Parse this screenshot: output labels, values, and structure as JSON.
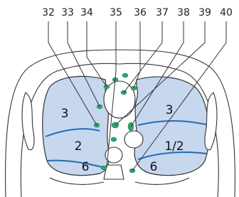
{
  "labels": [
    "32",
    "33",
    "34",
    "35",
    "36",
    "37",
    "38",
    "39",
    "40"
  ],
  "regions": [
    "3",
    "2",
    "6",
    "3",
    "1/2",
    "6"
  ]
}
